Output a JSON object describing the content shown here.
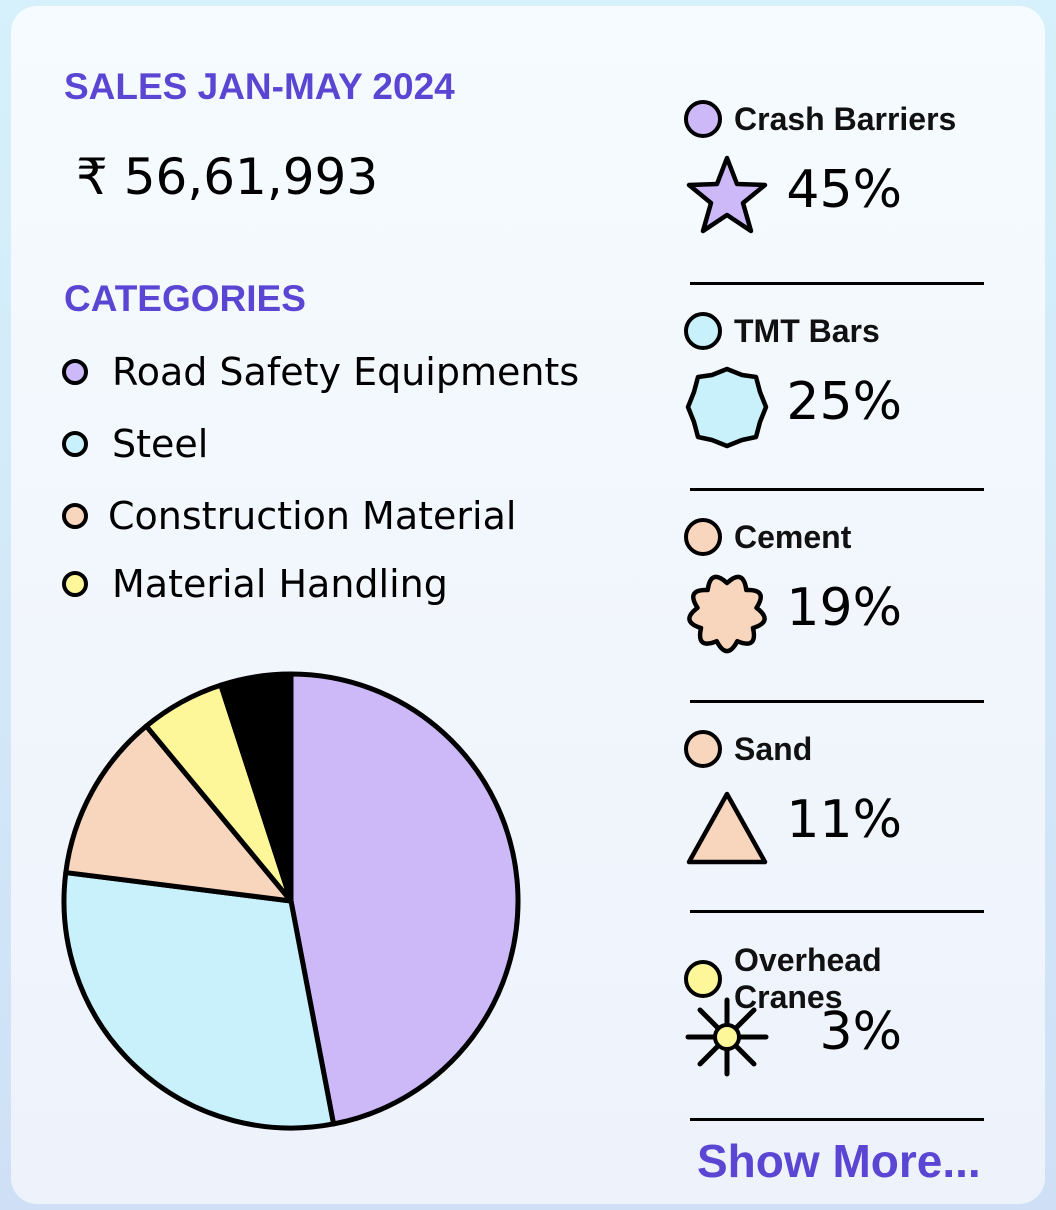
{
  "sales": {
    "heading": "SALES JAN-MAY 2024",
    "total": "₹ 56,61,993"
  },
  "categories": {
    "heading": "CATEGORIES",
    "items": [
      {
        "label": "Road Safety Equipments",
        "color": "#cdb9f7"
      },
      {
        "label": "Steel",
        "color": "#c9f1fb"
      },
      {
        "label": "Construction Material",
        "color": "#f8d6bd"
      },
      {
        "label": "Material Handling",
        "color": "#fdf79a"
      }
    ]
  },
  "chart_data": {
    "type": "pie",
    "slices": [
      {
        "value": 47,
        "color": "#cdb9f7"
      },
      {
        "value": 30,
        "color": "#c9f1fb"
      },
      {
        "value": 12,
        "color": "#f8d6bd"
      },
      {
        "value": 6,
        "color": "#fdf79a"
      },
      {
        "value": 5,
        "color": "#000000"
      }
    ]
  },
  "products": [
    {
      "name": "Crash Barriers",
      "percent": "45%",
      "color": "#cdb9f7",
      "icon": "star-icon"
    },
    {
      "name": "TMT Bars",
      "percent": "25%",
      "color": "#c9f1fb",
      "icon": "octagon-badge-icon"
    },
    {
      "name": "Cement",
      "percent": "19%",
      "color": "#f8d6bd",
      "icon": "scalloped-badge-icon"
    },
    {
      "name": "Sand",
      "percent": "11%",
      "color": "#f8d6bd",
      "icon": "triangle-icon"
    },
    {
      "name": "Overhead Cranes",
      "percent": "3%",
      "color": "#fdf79a",
      "icon": "burst-icon"
    }
  ],
  "show_more": "Show More..."
}
